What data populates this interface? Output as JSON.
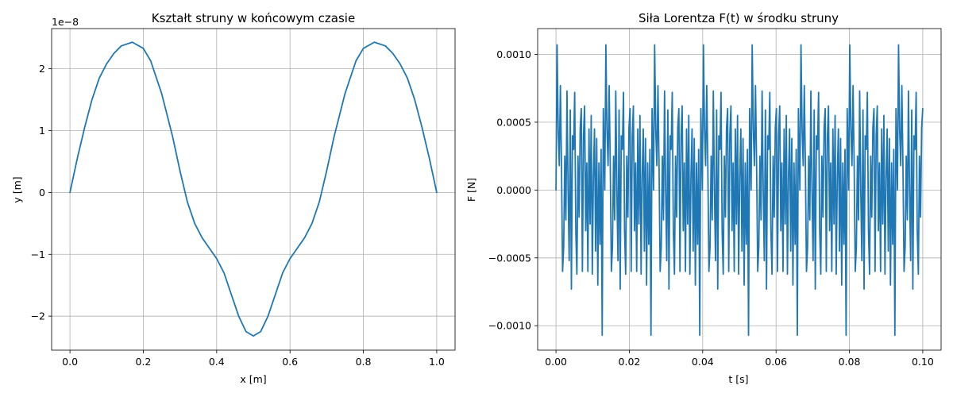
{
  "chart_data": [
    {
      "type": "line",
      "title": "Kształt struny w końcowym czasie",
      "xlabel": "x [m]",
      "ylabel": "y [m]",
      "offset_text": "1e−8",
      "xlim": [
        -0.05,
        1.05
      ],
      "ylim": [
        -2.55,
        2.65
      ],
      "xticks": [
        0.0,
        0.2,
        0.4,
        0.6,
        0.8,
        1.0
      ],
      "xtick_labels": [
        "0.0",
        "0.2",
        "0.4",
        "0.6",
        "0.8",
        "1.0"
      ],
      "yticks": [
        -2,
        -1,
        0,
        1,
        2
      ],
      "ytick_labels": [
        "−2",
        "−1",
        "0",
        "1",
        "2"
      ],
      "grid": true,
      "color": "#1f77b4",
      "series": [
        {
          "x": [
            0,
            0.02,
            0.04,
            0.06,
            0.08,
            0.1,
            0.12,
            0.14,
            0.17,
            0.2,
            0.22,
            0.25,
            0.28,
            0.3,
            0.32,
            0.34,
            0.36,
            0.38,
            0.4,
            0.42,
            0.44,
            0.46,
            0.48,
            0.5,
            0.52,
            0.54,
            0.56,
            0.58,
            0.6,
            0.62,
            0.64,
            0.66,
            0.68,
            0.7,
            0.72,
            0.75,
            0.78,
            0.8,
            0.83,
            0.86,
            0.88,
            0.9,
            0.92,
            0.94,
            0.96,
            0.98,
            1.0
          ],
          "y": [
            0,
            0.55,
            1.05,
            1.5,
            1.85,
            2.08,
            2.25,
            2.37,
            2.43,
            2.33,
            2.13,
            1.6,
            0.9,
            0.35,
            -0.15,
            -0.5,
            -0.73,
            -0.9,
            -1.07,
            -1.3,
            -1.65,
            -2.0,
            -2.25,
            -2.32,
            -2.25,
            -2.0,
            -1.65,
            -1.3,
            -1.07,
            -0.9,
            -0.73,
            -0.5,
            -0.15,
            0.35,
            0.9,
            1.6,
            2.13,
            2.33,
            2.43,
            2.37,
            2.25,
            2.08,
            1.85,
            1.5,
            1.05,
            0.55,
            0
          ]
        }
      ]
    },
    {
      "type": "line",
      "title": "Siła Lorentza F(t) w środku struny",
      "xlabel": "t [s]",
      "ylabel": "F [N]",
      "xlim": [
        -0.005,
        0.105
      ],
      "ylim": [
        -0.00118,
        0.00119
      ],
      "xticks": [
        0.0,
        0.02,
        0.04,
        0.06,
        0.08,
        0.1
      ],
      "xtick_labels": [
        "0.00",
        "0.02",
        "0.04",
        "0.06",
        "0.08",
        "0.10"
      ],
      "yticks": [
        -0.001,
        -0.0005,
        0.0,
        0.0005,
        0.001
      ],
      "ytick_labels": [
        "−0.0010",
        "−0.0005",
        "0.0000",
        "0.0005",
        "0.0010"
      ],
      "grid": true,
      "color": "#1f77b4",
      "period": 0.0133,
      "series": [
        {
          "x_one_period": [
            0,
            0.0003,
            0.0006,
            0.0009,
            0.0012,
            0.0015,
            0.0018,
            0.0021,
            0.0024,
            0.0027,
            0.003,
            0.0033,
            0.0036,
            0.0039,
            0.0042,
            0.0045,
            0.0048,
            0.0051,
            0.0054,
            0.0057,
            0.006,
            0.0063,
            0.0066,
            0.0069,
            0.0072,
            0.0075,
            0.0078,
            0.0081,
            0.0084,
            0.0087,
            0.009,
            0.0093,
            0.0096,
            0.0099,
            0.0102,
            0.0105,
            0.0108,
            0.0111,
            0.0114,
            0.0117,
            0.012,
            0.0123,
            0.0126,
            0.0129,
            0.0133
          ],
          "y_one_period": [
            0,
            0.00107,
            0.00045,
            0.00018,
            0.00077,
            0.00018,
            -0.0006,
            -0.00042,
            0.00025,
            -0.00022,
            0.00073,
            0.0,
            -0.00052,
            0.00059,
            -0.00073,
            0.0004,
            0.0003,
            0.00072,
            -0.0003,
            -0.00062,
            0.00025,
            -0.0002,
            0.00046,
            0.0006,
            -0.0006,
            0.0004,
            0.00062,
            -0.0003,
            0.0002,
            -0.0006,
            0.00045,
            -0.00025,
            0.00055,
            -0.00062,
            0.0001,
            0.00045,
            -0.00045,
            0.00038,
            -0.0007,
            0.0002,
            -0.0004,
            0.0003,
            -0.00107,
            0.0006,
            0
          ]
        }
      ]
    }
  ]
}
